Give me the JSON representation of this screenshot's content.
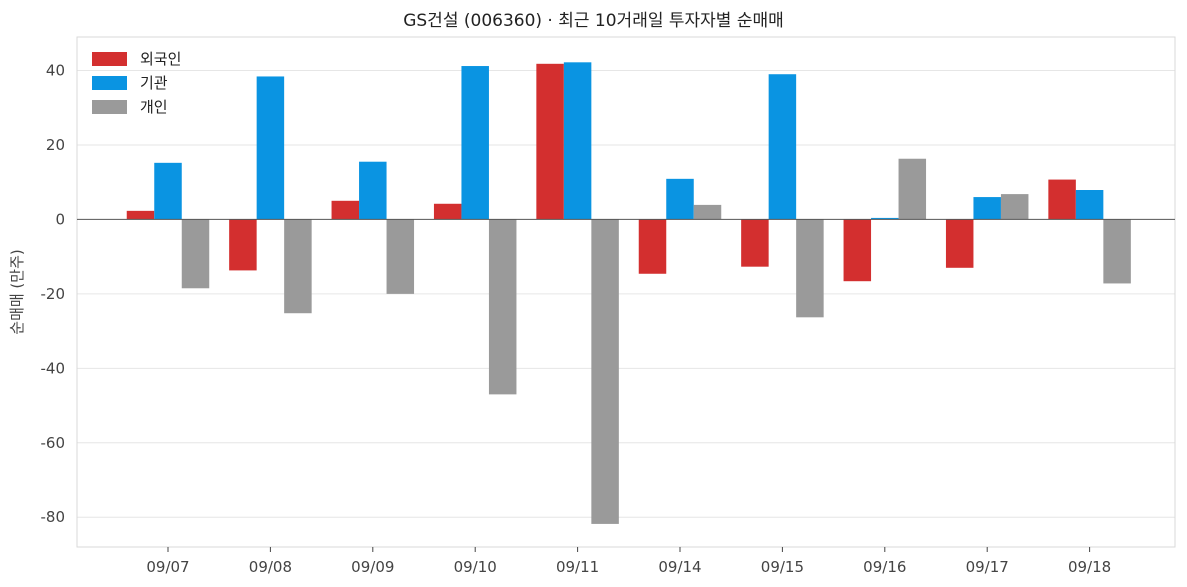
{
  "chart_data": {
    "type": "bar",
    "title": "GS건설 (006360) · 최근 10거래일 투자자별 순매매",
    "xlabel": "",
    "ylabel": "순매매 (만주)",
    "categories": [
      "09/07",
      "09/08",
      "09/09",
      "09/10",
      "09/11",
      "09/14",
      "09/15",
      "09/16",
      "09/17",
      "09/18"
    ],
    "series": [
      {
        "name": "외국인",
        "color": "#d32f2f",
        "values": [
          2.3,
          -13.7,
          5.0,
          4.2,
          41.8,
          -14.6,
          -12.7,
          -16.6,
          -13.0,
          10.7
        ]
      },
      {
        "name": "기관",
        "color": "#0a94e2",
        "values": [
          15.2,
          38.4,
          15.5,
          41.2,
          42.2,
          10.9,
          39.0,
          0.4,
          6.0,
          7.9
        ]
      },
      {
        "name": "개인",
        "color": "#9a9a9a",
        "values": [
          -18.5,
          -25.2,
          -20.0,
          -47.0,
          -81.8,
          3.9,
          -26.3,
          16.3,
          6.8,
          -17.2
        ]
      }
    ],
    "ylim": [
      -88,
      49
    ],
    "yticks": [
      40,
      20,
      0,
      -20,
      -40,
      -60,
      -80
    ],
    "grid": true,
    "legend_position": "top-left"
  }
}
